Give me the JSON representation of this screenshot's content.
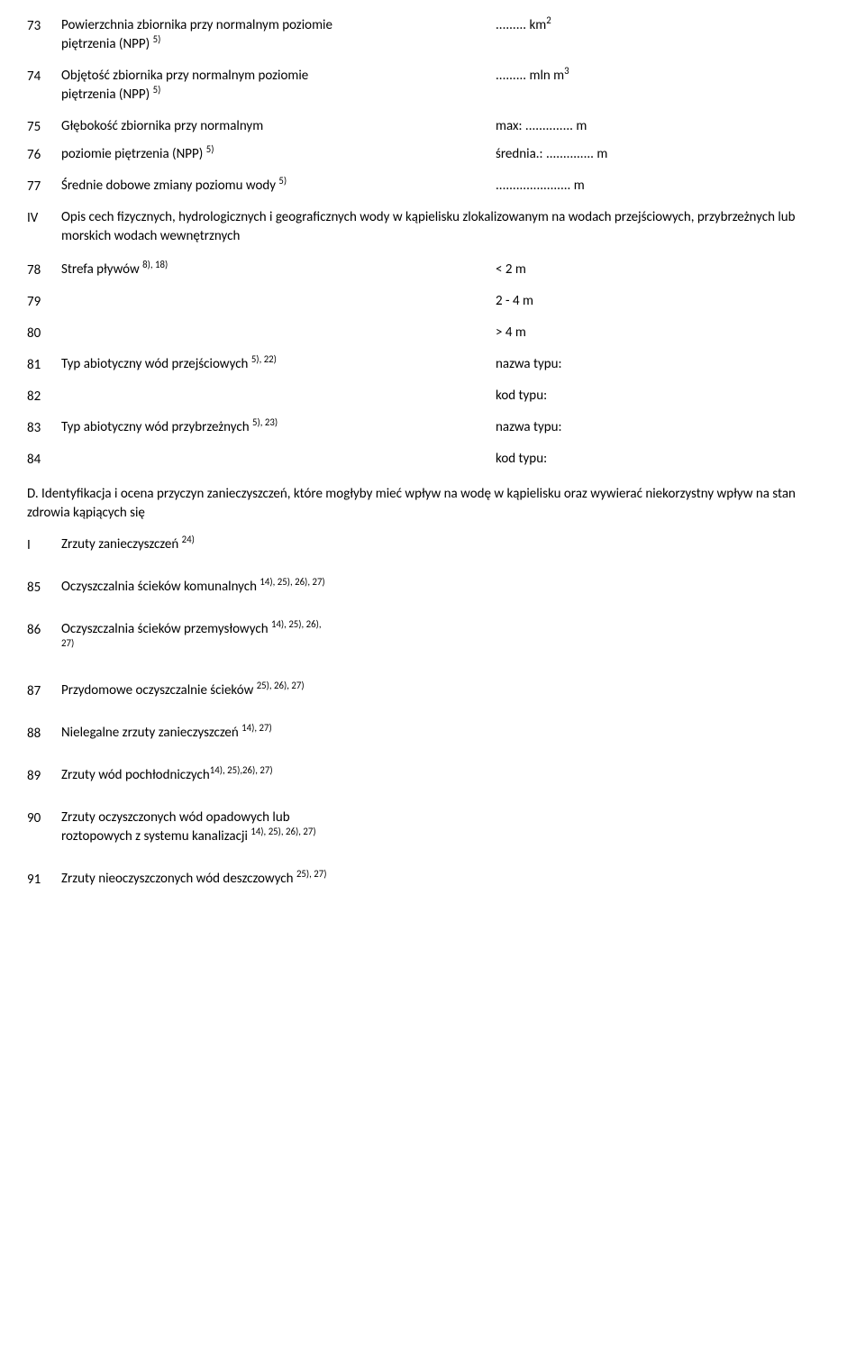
{
  "r73": {
    "num": "73",
    "label_l1": "Powierzchnia zbiornika przy normalnym poziomie",
    "label_l2": "piętrzenia (NPP) ",
    "sup": "5)",
    "val": "......... km",
    "vsup": "2"
  },
  "r74": {
    "num": "74",
    "label_l1": "Objętość zbiornika przy normalnym poziomie",
    "label_l2": "piętrzenia (NPP) ",
    "sup": "5)",
    "val": "......... mln m",
    "vsup": "3"
  },
  "r75": {
    "num": "75",
    "label": "Głębokość zbiornika przy normalnym",
    "val": "max: .............. m"
  },
  "r76": {
    "num": "76",
    "label": "poziomie piętrzenia (NPP) ",
    "sup": "5)",
    "val": "średnia.: .............. m"
  },
  "r77": {
    "num": "77",
    "label": "Średnie dobowe zmiany poziomu wody ",
    "sup": "5)",
    "val": "...................... m"
  },
  "rIV": {
    "num": "IV",
    "text": "Opis cech fizycznych, hydrologicznych i geograficznych wody w kąpielisku zlokalizowanym na wodach przejściowych, przybrzeżnych lub morskich wodach wewnętrznych"
  },
  "r78": {
    "num": "78",
    "label": "Strefa pływów ",
    "sup": "8), 18)",
    "val": "< 2 m"
  },
  "r79": {
    "num": "79",
    "val": "2 - 4 m"
  },
  "r80": {
    "num": "80",
    "val": "> 4 m"
  },
  "r81": {
    "num": "81",
    "label": "Typ abiotyczny wód przejściowych ",
    "sup": "5), 22)",
    "val": "nazwa typu:"
  },
  "r82": {
    "num": "82",
    "val": "kod typu:"
  },
  "r83": {
    "num": "83",
    "label": "Typ abiotyczny wód przybrzeżnych ",
    "sup": "5), 23)",
    "val": "nazwa typu:"
  },
  "r84": {
    "num": "84",
    "val": "kod typu:"
  },
  "secD": "D. Identyfikacja i ocena przyczyn zanieczyszczeń, które mogłyby mieć wpływ na wodę w kąpielisku oraz wywierać niekorzystny wpływ na stan zdrowia kąpiących się",
  "rI": {
    "num": "I",
    "label": "Zrzuty zanieczyszczeń ",
    "sup": "24)"
  },
  "r85": {
    "num": "85",
    "label": "Oczyszczalnia ścieków komunalnych ",
    "sup": "14), 25), 26), 27)"
  },
  "r86": {
    "num": "86",
    "label_l1": "Oczyszczalnia ścieków przemysłowych ",
    "sup1": "14), 25), 26),",
    "label_l2": "27)"
  },
  "r87": {
    "num": "87",
    "label": "Przydomowe oczyszczalnie ścieków ",
    "sup": "25), 26), 27)"
  },
  "r88": {
    "num": "88",
    "label": "Nielegalne zrzuty zanieczyszczeń ",
    "sup": "14), 27)"
  },
  "r89": {
    "num": "89",
    "label": "Zrzuty wód pochłodniczych",
    "sup": "14), 25),26), 27)"
  },
  "r90": {
    "num": "90",
    "label_l1": "Zrzuty oczyszczonych wód opadowych lub",
    "label_l2": "roztopowych z systemu kanalizacji ",
    "sup": "14), 25), 26), 27)"
  },
  "r91": {
    "num": "91",
    "label": "Zrzuty nieoczyszczonych wód deszczowych ",
    "sup": "25), 27)"
  }
}
